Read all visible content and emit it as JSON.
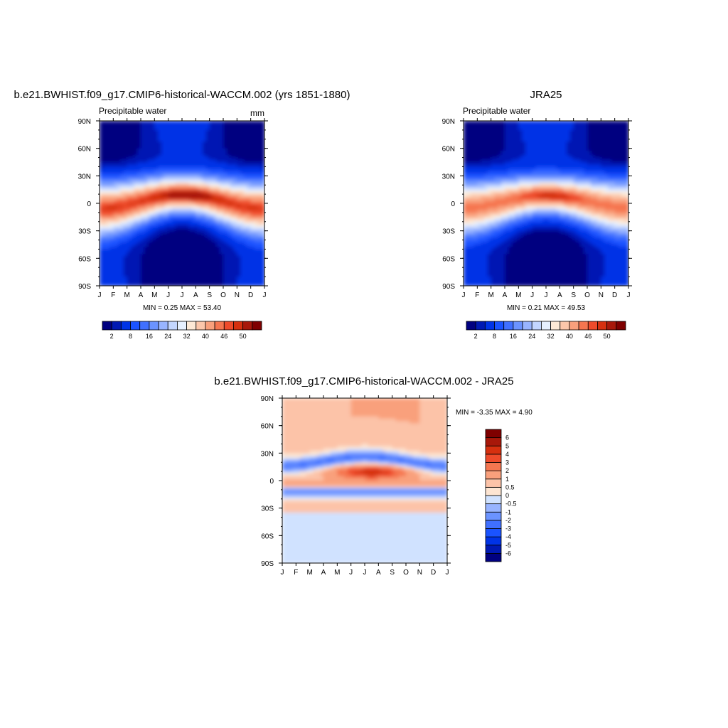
{
  "panels": {
    "model": {
      "title": "b.e21.BWHIST.f09_g17.CMIP6-historical-WACCM.002 (yrs 1851-1880)",
      "left_label": "Precipitable water",
      "right_label": "mm",
      "minmax": "MIN =   0.25 MAX =  53.40",
      "colorbar_labels": [
        "2",
        "8",
        "16",
        "24",
        "32",
        "40",
        "46",
        "50"
      ]
    },
    "obs": {
      "title": "JRA25",
      "left_label": "Precipitable water",
      "right_label": "",
      "minmax": "MIN =   0.21 MAX =  49.53",
      "colorbar_labels": [
        "2",
        "8",
        "16",
        "24",
        "32",
        "40",
        "46",
        "50"
      ]
    },
    "diff": {
      "title": "b.e21.BWHIST.f09_g17.CMIP6-historical-WACCM.002 - JRA25",
      "minmax": "MIN =  -3.35 MAX =    4.90",
      "colorbar_labels": [
        "-6",
        "-5",
        "-4",
        "-3",
        "-2",
        "-1",
        "-0.5",
        "0",
        "0.5",
        "1",
        "2",
        "3",
        "4",
        "5",
        "6"
      ]
    }
  },
  "chart_data": [
    {
      "type": "heatmap",
      "title": "b.e21.BWHIST.f09_g17.CMIP6-historical-WACCM.002 (yrs 1851-1880)",
      "subtitle": "Precipitable water",
      "units": "mm",
      "x_ticks": [
        "J",
        "F",
        "M",
        "A",
        "M",
        "J",
        "J",
        "A",
        "S",
        "O",
        "N",
        "D",
        "J"
      ],
      "y_ticks": [
        "90N",
        "60N",
        "30N",
        "0",
        "30S",
        "60S",
        "90S"
      ],
      "ylim": [
        -90,
        90
      ],
      "min": 0.25,
      "max": 53.4,
      "levels": [
        2,
        4,
        8,
        12,
        16,
        20,
        24,
        28,
        32,
        36,
        40,
        44,
        46,
        48,
        50
      ],
      "colors": [
        "#000080",
        "#0019b3",
        "#0033e6",
        "#1a53ff",
        "#4070ff",
        "#6b93ff",
        "#98b4ff",
        "#c3d6ff",
        "#e6f0ff",
        "#fde9d6",
        "#fcc7ab",
        "#f9a07c",
        "#f57650",
        "#ee4b2b",
        "#d6300f",
        "#a8180a",
        "#7f0000"
      ],
      "peak": {
        "lat": 8,
        "month": 7.5
      }
    },
    {
      "type": "heatmap",
      "title": "JRA25",
      "subtitle": "Precipitable water",
      "x_ticks": [
        "J",
        "F",
        "M",
        "A",
        "M",
        "J",
        "J",
        "A",
        "S",
        "O",
        "N",
        "D",
        "J"
      ],
      "y_ticks": [
        "90N",
        "60N",
        "30N",
        "0",
        "30S",
        "60S",
        "90S"
      ],
      "ylim": [
        -90,
        90
      ],
      "min": 0.21,
      "max": 49.53,
      "levels": [
        2,
        4,
        8,
        12,
        16,
        20,
        24,
        28,
        32,
        36,
        40,
        44,
        46,
        48,
        50
      ],
      "colors": [
        "#000080",
        "#0019b3",
        "#0033e6",
        "#1a53ff",
        "#4070ff",
        "#6b93ff",
        "#98b4ff",
        "#c3d6ff",
        "#e6f0ff",
        "#fde9d6",
        "#fcc7ab",
        "#f9a07c",
        "#f57650",
        "#ee4b2b",
        "#d6300f",
        "#a8180a",
        "#7f0000"
      ],
      "peak": {
        "lat": 6,
        "month": 7
      }
    },
    {
      "type": "heatmap",
      "title": "b.e21.BWHIST.f09_g17.CMIP6-historical-WACCM.002 - JRA25",
      "x_ticks": [
        "J",
        "F",
        "M",
        "A",
        "M",
        "J",
        "J",
        "A",
        "S",
        "O",
        "N",
        "D",
        "J"
      ],
      "y_ticks": [
        "90N",
        "60N",
        "30N",
        "0",
        "30S",
        "60S",
        "90S"
      ],
      "ylim": [
        -90,
        90
      ],
      "min": -3.35,
      "max": 4.9,
      "levels": [
        -6,
        -5,
        -4,
        -3,
        -2,
        -1,
        -0.5,
        0,
        0.5,
        1,
        2,
        3,
        4,
        5,
        6
      ],
      "colors": [
        "#000080",
        "#0019b3",
        "#0033e6",
        "#1a53ff",
        "#4070ff",
        "#6b93ff",
        "#98b4ff",
        "#d0e2ff",
        "#fde5d2",
        "#fcc3a8",
        "#f9a07c",
        "#f57650",
        "#ee4b2b",
        "#d6300f",
        "#a8180a",
        "#7f0000"
      ]
    }
  ]
}
